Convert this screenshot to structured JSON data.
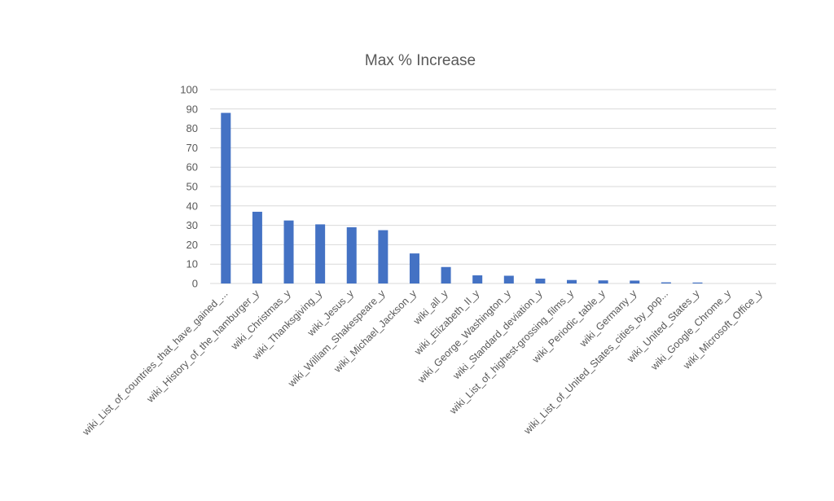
{
  "chart_data": {
    "type": "bar",
    "title": "Max % Increase",
    "xlabel": "",
    "ylabel": "",
    "ylim": [
      0,
      100
    ],
    "yticks": [
      0,
      10,
      20,
      30,
      40,
      50,
      60,
      70,
      80,
      90,
      100
    ],
    "grid": true,
    "legend": "none",
    "bar_color": "#4472c4",
    "categories": [
      "wiki_List_of_countries_that_have_gained_...",
      "wiki_History_of_the_hamburger_y",
      "wiki_Christmas_y",
      "wiki_Thanksgiving_y",
      "wiki_Jesus_y",
      "wiki_William_Shakespeare_y",
      "wiki_Michael_Jackson_y",
      "wiki_all_y",
      "wiki_Elizabeth_II_y",
      "wiki_George_Washington_y",
      "wiki_Standard_deviation_y",
      "wiki_List_of_highest-grossing_films_y",
      "wiki_Periodic_table_y",
      "wiki_Germany_y",
      "wiki_List_of_United_States_cities_by_pop...",
      "wiki_United_States_y",
      "wiki_Google_Chrome_y",
      "wiki_Microsoft_Office_y"
    ],
    "values": [
      88,
      37,
      32.5,
      30.5,
      29,
      27.5,
      15.5,
      8.5,
      4.2,
      4,
      2.5,
      1.8,
      1.6,
      1.5,
      0.6,
      0.5,
      0,
      0
    ]
  }
}
